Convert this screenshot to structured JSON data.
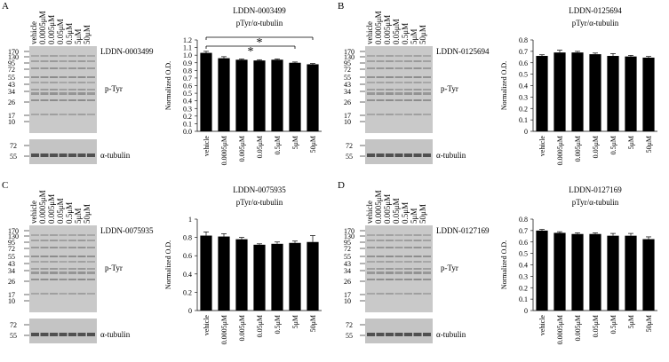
{
  "chart_data": [
    {
      "type": "bar",
      "title": "LDDN-0003499",
      "subtitle": "pTyr/α-tubulin",
      "y_label": "Normalized O.D.",
      "categories": [
        "vehicle",
        "0.0005μM",
        "0.005μM",
        "0.05μM",
        "0.5μM",
        "5μM",
        "50μM"
      ],
      "values": [
        1.03,
        0.96,
        0.94,
        0.93,
        0.94,
        0.9,
        0.88
      ],
      "errors": [
        0.02,
        0.02,
        0.01,
        0.01,
        0.01,
        0.01,
        0.01
      ],
      "color": "#000000",
      "ylim": [
        0,
        1.2
      ],
      "yticks": [
        {
          "value": 0,
          "label": "0.0"
        },
        0.1,
        0.2,
        0.3,
        0.4,
        0.5,
        0.6,
        0.7,
        0.8,
        0.9,
        {
          "value": 1,
          "label": "1.0"
        },
        1.1,
        1.2
      ],
      "annotations": [
        "*",
        "*"
      ]
    },
    {
      "type": "bar",
      "title": "LDDN-0125694",
      "subtitle": "pTyr/α-tubulin",
      "y_label": "Normalized O.D.",
      "categories": [
        "vehicle",
        "0.0005μM",
        "0.005μM",
        "0.05μM",
        "0.5μM",
        "5μM",
        "50μM"
      ],
      "values": [
        0.66,
        0.69,
        0.69,
        0.675,
        0.66,
        0.655,
        0.645
      ],
      "errors": [
        0.01,
        0.02,
        0.01,
        0.01,
        0.02,
        0.01,
        0.01
      ],
      "color": "#000000",
      "ylim": [
        0,
        0.8
      ],
      "yticks": [
        0,
        0.1,
        0.2,
        0.3,
        0.4,
        0.5,
        0.6,
        0.7,
        0.8
      ]
    },
    {
      "type": "bar",
      "title": "LDDN-0075935",
      "subtitle": "pTyr/α-tubulin",
      "y_label": "Normalized O.D.",
      "categories": [
        "vehicle",
        "0.0005μM",
        "0.005μM",
        "0.05μM",
        "0.5μM",
        "5μM",
        "50μM"
      ],
      "values": [
        0.82,
        0.81,
        0.78,
        0.72,
        0.73,
        0.74,
        0.75
      ],
      "errors": [
        0.04,
        0.03,
        0.02,
        0.01,
        0.02,
        0.02,
        0.07
      ],
      "color": "#000000",
      "ylim": [
        0,
        1
      ],
      "yticks": [
        0,
        0.2,
        0.4,
        0.6,
        0.8,
        1
      ]
    },
    {
      "type": "bar",
      "title": "LDDN-0127169",
      "subtitle": "pTyr/α-tubulin",
      "y_label": "Normalized O.D.",
      "categories": [
        "vehicle",
        "0.0005μM",
        "0.005μM",
        "0.05μM",
        "0.5μM",
        "5μM",
        "50μM"
      ],
      "values": [
        0.7,
        0.68,
        0.67,
        0.67,
        0.655,
        0.655,
        0.625
      ],
      "errors": [
        0.01,
        0.01,
        0.01,
        0.01,
        0.02,
        0.02,
        0.02
      ],
      "color": "#000000",
      "ylim": [
        0,
        0.8
      ],
      "yticks": [
        0,
        0.1,
        0.2,
        0.3,
        0.4,
        0.5,
        0.6,
        0.7,
        0.8
      ]
    }
  ],
  "panels": [
    {
      "letter": "A",
      "compound": "LDDN-0003499",
      "blot_label": "p-Tyr",
      "loading_label": "α-tubulin",
      "markers": [
        "170",
        "130",
        "95",
        "72",
        "55",
        "43",
        "34",
        "26",
        "17",
        "10"
      ],
      "loading_markers": [
        "72",
        "55"
      ]
    },
    {
      "letter": "B",
      "compound": "LDDN-0125694",
      "blot_label": "p-Tyr",
      "loading_label": "α-tubulin",
      "markers": [
        "170",
        "130",
        "95",
        "72",
        "55",
        "43",
        "34",
        "26",
        "17",
        "10"
      ],
      "loading_markers": [
        "72",
        "55"
      ]
    },
    {
      "letter": "C",
      "compound": "LDDN-0075935",
      "blot_label": "p-Tyr",
      "loading_label": "α-tubulin",
      "markers": [
        "170",
        "130",
        "95",
        "72",
        "55",
        "43",
        "34",
        "26",
        "17",
        "10"
      ],
      "loading_markers": [
        "72",
        "55"
      ]
    },
    {
      "letter": "D",
      "compound": "LDDN-0127169",
      "blot_label": "p-Tyr",
      "loading_label": "α-tubulin",
      "markers": [
        "170",
        "130",
        "95",
        "72",
        "55",
        "43",
        "34",
        "26",
        "17",
        "10"
      ],
      "loading_markers": [
        "72",
        "55"
      ]
    }
  ]
}
